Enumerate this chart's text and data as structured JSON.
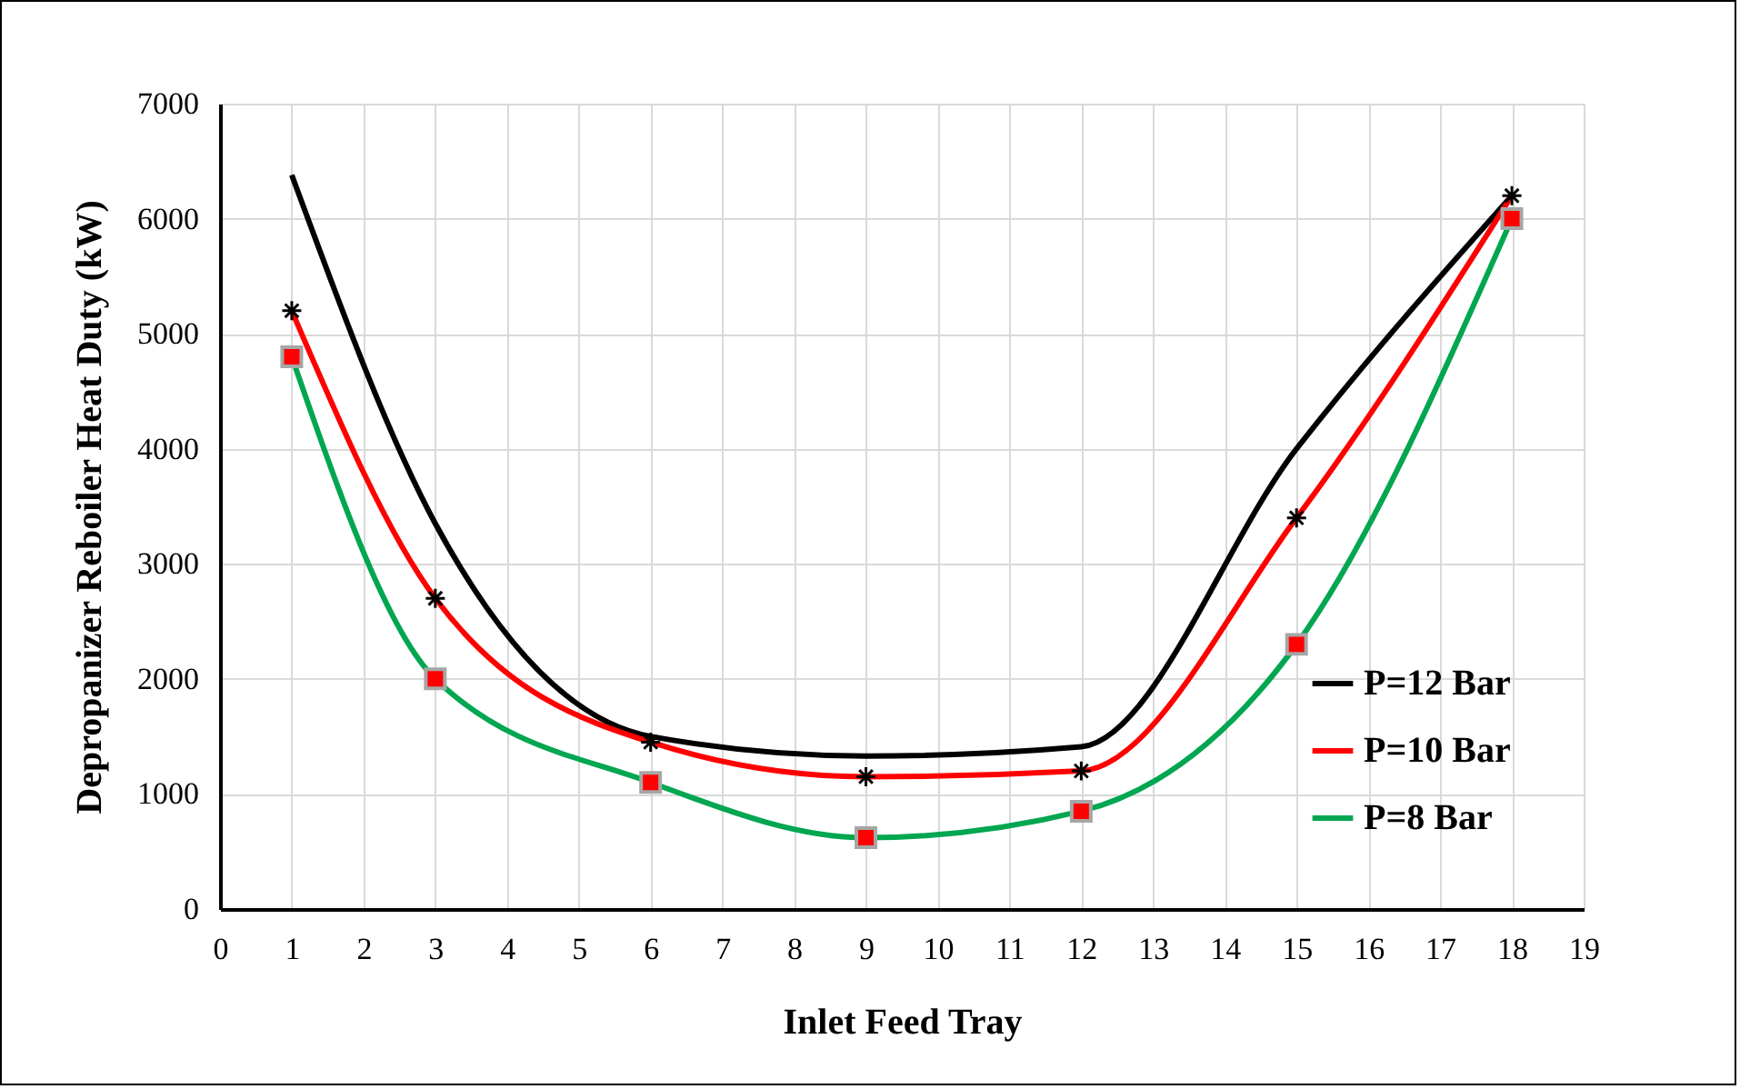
{
  "chart_data": {
    "type": "line",
    "xlabel": "Inlet Feed Tray",
    "ylabel": "Depropanizer Reboiler Heat Duty (kW)",
    "x": [
      1,
      3,
      6,
      9,
      12,
      15,
      18
    ],
    "xlim": [
      0,
      19
    ],
    "xticks": [
      0,
      1,
      2,
      3,
      4,
      5,
      6,
      7,
      8,
      9,
      10,
      11,
      12,
      13,
      14,
      15,
      16,
      17,
      18,
      19
    ],
    "ylim": [
      0,
      7000
    ],
    "yticks": [
      0,
      1000,
      2000,
      3000,
      4000,
      5000,
      6000,
      7000
    ],
    "grid": true,
    "legend": "bottom right",
    "series": [
      {
        "name": "P=12 Bar",
        "color": "#000000",
        "marker": "none",
        "values": [
          6380,
          3350,
          1500,
          1330,
          1410,
          4000,
          6200
        ]
      },
      {
        "name": "P=10 Bar",
        "color": "#ff0000",
        "marker": "cross",
        "values": [
          5200,
          2700,
          1450,
          1150,
          1200,
          3400,
          6200
        ]
      },
      {
        "name": "P=8 Bar",
        "color": "#00a650",
        "marker": "square",
        "values": [
          4800,
          2000,
          1100,
          620,
          850,
          2300,
          6000
        ]
      }
    ]
  }
}
